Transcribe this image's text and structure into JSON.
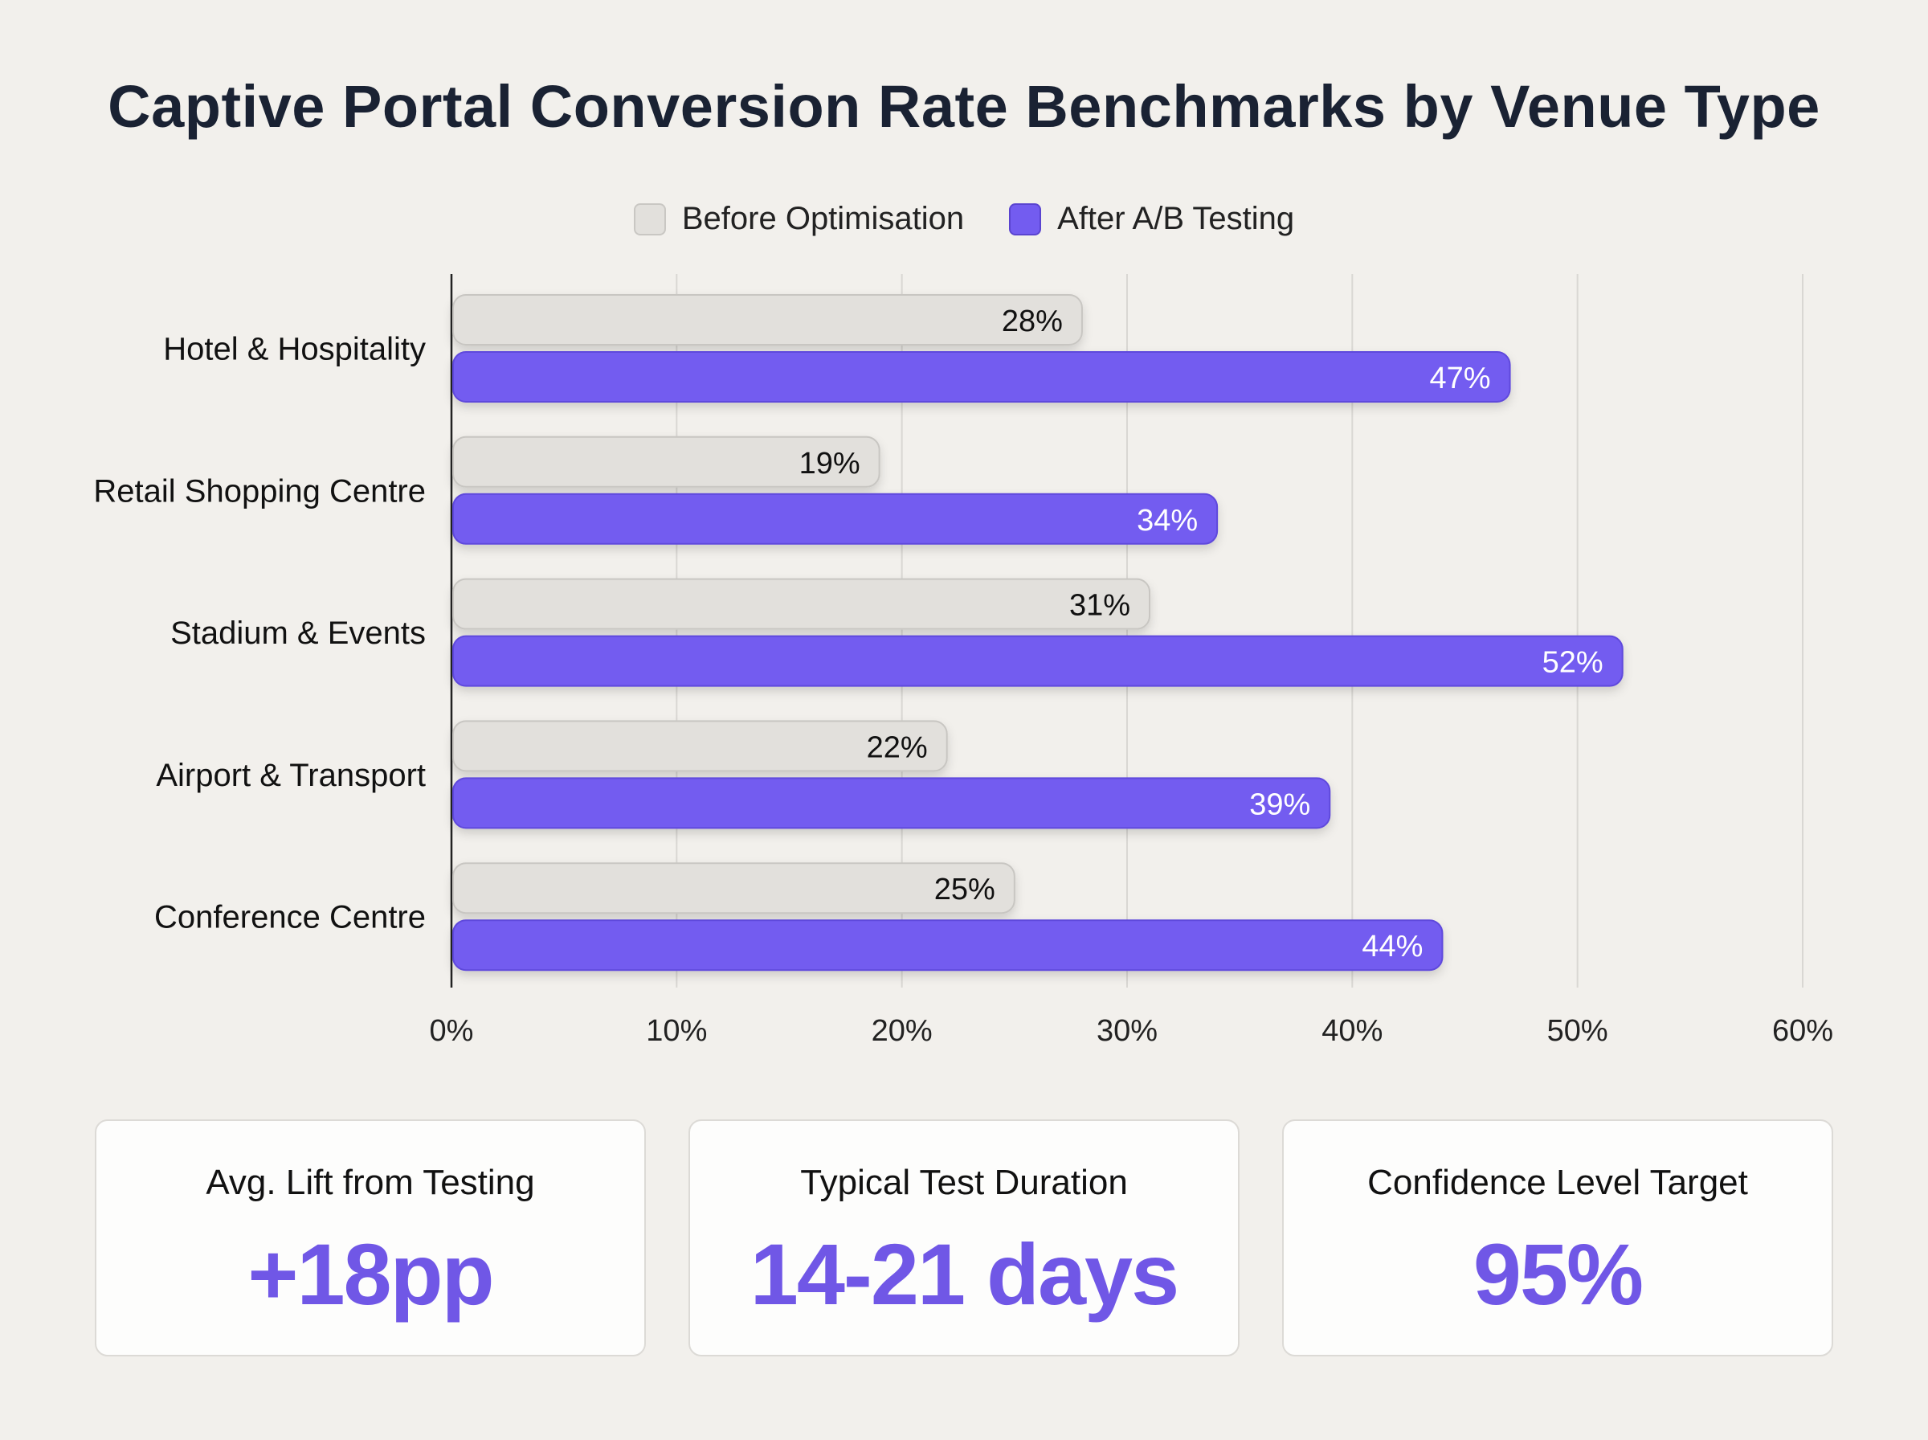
{
  "chart_data": {
    "type": "bar",
    "orientation": "horizontal",
    "title": "Captive Portal Conversion Rate Benchmarks by Venue Type",
    "categories": [
      "Hotel & Hospitality",
      "Retail Shopping Centre",
      "Stadium & Events",
      "Airport & Transport",
      "Conference Centre"
    ],
    "series": [
      {
        "name": "Before Optimisation",
        "values": [
          28,
          19,
          31,
          22,
          25
        ],
        "color": "#e2e0dc"
      },
      {
        "name": "After A/B Testing",
        "values": [
          47,
          34,
          52,
          39,
          44
        ],
        "color": "#735cf0"
      }
    ],
    "xlim": [
      0,
      60
    ],
    "xticks": [
      "0%",
      "10%",
      "20%",
      "30%",
      "40%",
      "50%",
      "60%"
    ],
    "value_suffix": "%",
    "grid": true,
    "legend": "top-center"
  },
  "cards": [
    {
      "label": "Avg. Lift from Testing",
      "value": "+18pp"
    },
    {
      "label": "Typical Test Duration",
      "value": "14-21 days"
    },
    {
      "label": "Confidence Level Target",
      "value": "95%"
    }
  ]
}
